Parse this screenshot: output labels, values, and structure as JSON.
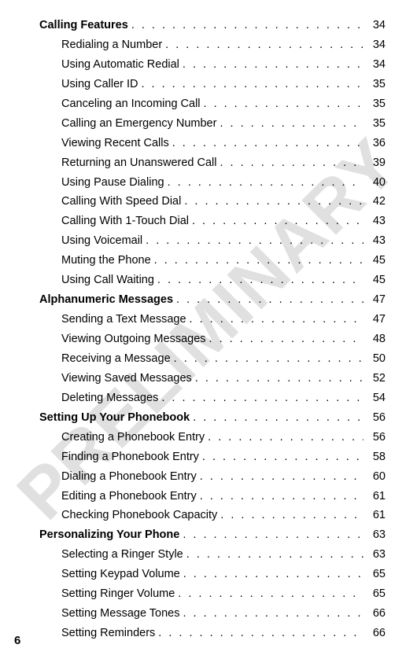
{
  "watermark_text": "PRELIMINARY",
  "page_footer": "6",
  "sections": [
    {
      "title": "Calling Features",
      "page": "34",
      "items": [
        {
          "label": "Redialing a Number",
          "page": "34"
        },
        {
          "label": "Using Automatic Redial",
          "page": "34"
        },
        {
          "label": "Using Caller ID",
          "page": "35"
        },
        {
          "label": "Canceling an Incoming Call",
          "page": "35"
        },
        {
          "label": "Calling an Emergency Number",
          "page": "35"
        },
        {
          "label": "Viewing Recent Calls",
          "page": "36"
        },
        {
          "label": "Returning an Unanswered Call",
          "page": "39"
        },
        {
          "label": "Using Pause Dialing",
          "page": "40"
        },
        {
          "label": "Calling With Speed Dial",
          "page": "42"
        },
        {
          "label": "Calling With 1-Touch Dial",
          "page": "43"
        },
        {
          "label": "Using Voicemail",
          "page": "43"
        },
        {
          "label": "Muting the Phone",
          "page": "45"
        },
        {
          "label": "Using Call Waiting",
          "page": "45"
        }
      ]
    },
    {
      "title": "Alphanumeric Messages",
      "page": "47",
      "items": [
        {
          "label": "Sending a Text Message",
          "page": "47"
        },
        {
          "label": "Viewing Outgoing Messages",
          "page": "48"
        },
        {
          "label": "Receiving a Message",
          "page": "50"
        },
        {
          "label": "Viewing Saved Messages",
          "page": "52"
        },
        {
          "label": "Deleting Messages",
          "page": "54"
        }
      ]
    },
    {
      "title": "Setting Up Your Phonebook",
      "page": "56",
      "items": [
        {
          "label": "Creating a Phonebook Entry",
          "page": "56"
        },
        {
          "label": "Finding a Phonebook Entry",
          "page": "58"
        },
        {
          "label": "Dialing a Phonebook Entry",
          "page": "60"
        },
        {
          "label": "Editing a Phonebook Entry",
          "page": "61"
        },
        {
          "label": "Checking Phonebook Capacity",
          "page": "61"
        }
      ]
    },
    {
      "title": "Personalizing Your Phone",
      "page": "63",
      "items": [
        {
          "label": "Selecting a Ringer Style",
          "page": "63"
        },
        {
          "label": "Setting Keypad Volume",
          "page": "65"
        },
        {
          "label": "Setting Ringer Volume",
          "page": "65"
        },
        {
          "label": "Setting Message Tones",
          "page": "66"
        },
        {
          "label": "Setting Reminders",
          "page": "66"
        }
      ]
    }
  ]
}
